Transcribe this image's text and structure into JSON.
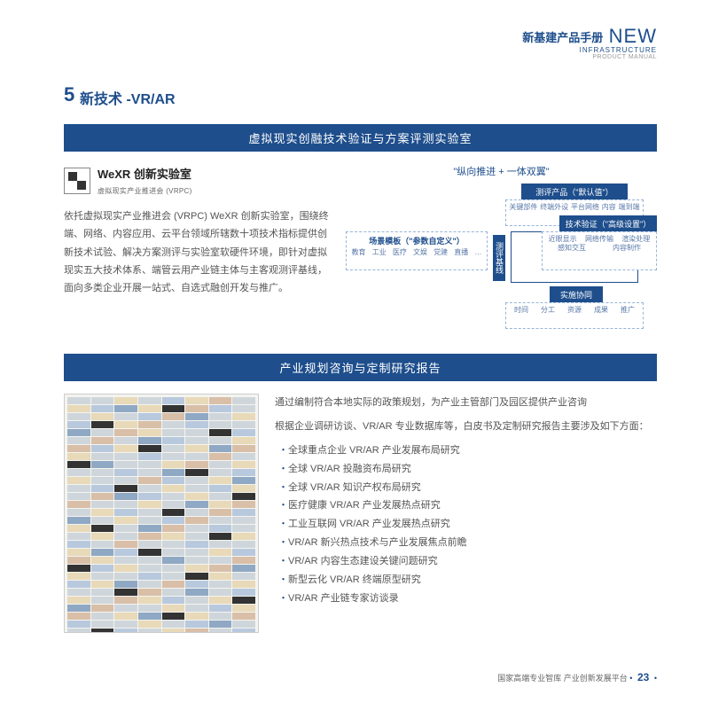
{
  "header": {
    "cn": "新基建产品手册",
    "en_big": "NEW",
    "en_line1": "INFRASTRUCTURE",
    "en_line2": "PRODUCT MANUAL"
  },
  "section": {
    "num": "5",
    "title": "新技术 -VR/AR"
  },
  "bar1": "虚拟现实创融技术验证与方案评测实验室",
  "wexr": {
    "name": "WeXR 创新实验室",
    "sub": "虚拟现实产业推进会 (VRPC)",
    "desc": "依托虚拟现实产业推进会 (VRPC) WeXR 创新实验室，围绕终端、网络、内容应用、云平台领域所辖数十项技术指标提供创新技术试验、解决方案测评与实验室软硬件环境，即针对虚拟现实五大技术体系、端管云用产业链主体与主客观测评基线，面向多类企业开展一站式、自选式融创开发与推广。"
  },
  "diagram": {
    "caption": "\"纵向推进 + 一体双翼\"",
    "top_box": {
      "title": "测评产品（\"默认值\"）",
      "cells": [
        "关键部件",
        "终端外设",
        "平台网络",
        "内容",
        "端到端"
      ]
    },
    "left_box": {
      "title": "场景模板（\"参数自定义\"）",
      "cells": [
        "教育",
        "工业",
        "医疗",
        "文娱",
        "党建",
        "直播",
        "…"
      ]
    },
    "center_box": {
      "l1": "指标池",
      "l2": "方法库",
      "l3": "工具箱",
      "l4": "（参考）标准集"
    },
    "right_box": {
      "title": "技术验证（\"高级设置\"）",
      "cells": [
        "近眼显示",
        "网络传输",
        "渲染处理",
        "感知交互",
        "内容制作"
      ]
    },
    "bottom_center": "实施协同",
    "bottom_cells": [
      "时间",
      "分工",
      "资源",
      "成果",
      "推广"
    ],
    "side_label": "测评基线"
  },
  "bar2": "产业规划咨询与定制研究报告",
  "report": {
    "intro1": "通过编制符合本地实际的政策规划，为产业主管部门及园区提供产业咨询",
    "intro2": "根据企业调研访谈、VR/AR 专业数据库等，白皮书及定制研究报告主要涉及如下方面：",
    "items": [
      "全球重点企业 VR/AR 产业发展布局研究",
      "全球 VR/AR 投融资布局研究",
      "全球 VR/AR 知识产权布局研究",
      "医疗健康 VR/AR 产业发展热点研究",
      "工业互联网 VR/AR 产业发展热点研究",
      "VR/AR 新兴热点技术与产业发展焦点前瞻",
      "VR/AR 内容生态建设关键问题研究",
      "新型云化 VR/AR 终端原型研究",
      "VR/AR 产业链专家访谈录"
    ]
  },
  "footer": {
    "text": "国家高端专业智库  产业创新发展平台",
    "page": "23"
  },
  "colors": {
    "primary": "#1e4e8c",
    "text": "#555",
    "border": "#96b4d6"
  }
}
